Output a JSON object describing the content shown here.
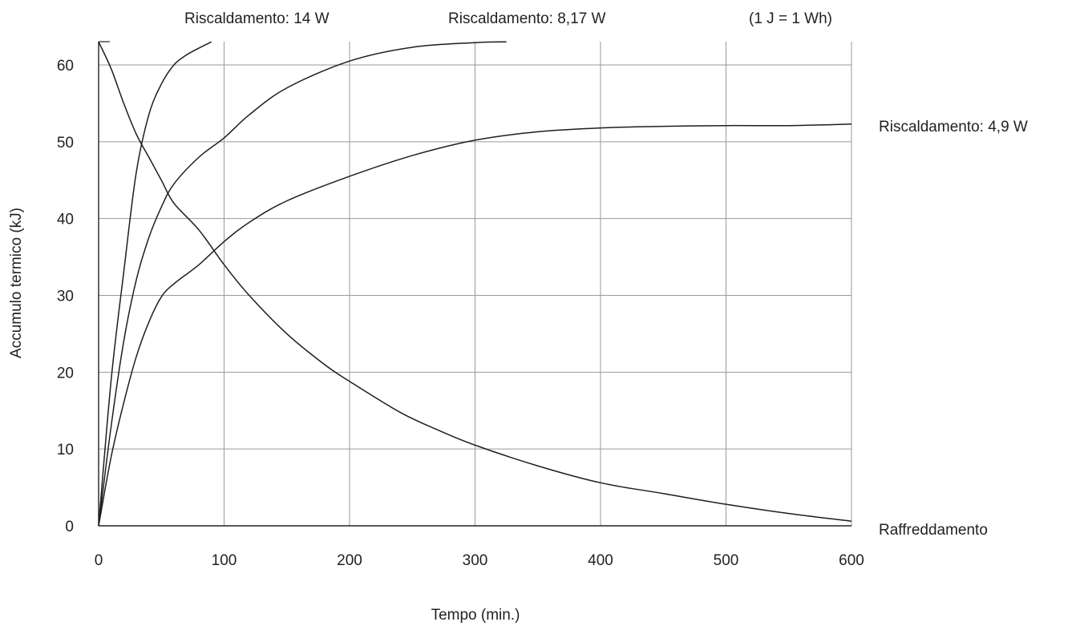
{
  "chart_data": {
    "type": "line",
    "title": "",
    "xlabel": "Tempo (min.)",
    "ylabel": "Accumulo termico (kJ)",
    "xlim": [
      0,
      600
    ],
    "ylim": [
      0,
      60
    ],
    "xticks": [
      0,
      100,
      200,
      300,
      400,
      500,
      600
    ],
    "yticks": [
      0,
      10,
      20,
      30,
      40,
      50,
      60
    ],
    "xtick_labels": [
      "0",
      "100",
      "200",
      "300",
      "400",
      "500",
      "600"
    ],
    "ytick_labels": [
      "0",
      "10",
      "20",
      "30",
      "40",
      "50",
      "60"
    ],
    "grid": true,
    "note": "(1 J = 1 Wh)",
    "series": [
      {
        "name": "Riscaldamento: 14 W",
        "points": [
          [
            0,
            0
          ],
          [
            10,
            19
          ],
          [
            20,
            33
          ],
          [
            30,
            46
          ],
          [
            40,
            53.5
          ],
          [
            50,
            57.5
          ],
          [
            60,
            60
          ],
          [
            70,
            61.3
          ],
          [
            80,
            62.2
          ],
          [
            90,
            63
          ]
        ]
      },
      {
        "name": "Riscaldamento: 8,17 W",
        "points": [
          [
            0,
            0
          ],
          [
            10,
            13
          ],
          [
            20,
            24
          ],
          [
            30,
            32
          ],
          [
            40,
            37.5
          ],
          [
            50,
            41.5
          ],
          [
            60,
            44.5
          ],
          [
            80,
            48
          ],
          [
            100,
            50.5
          ],
          [
            120,
            53.5
          ],
          [
            150,
            57
          ],
          [
            200,
            60.5
          ],
          [
            250,
            62.3
          ],
          [
            300,
            62.9
          ],
          [
            325,
            63
          ]
        ]
      },
      {
        "name": "Riscaldamento: 4,9 W",
        "points": [
          [
            0,
            0
          ],
          [
            10,
            9
          ],
          [
            20,
            16
          ],
          [
            30,
            22
          ],
          [
            40,
            26.5
          ],
          [
            50,
            29.8
          ],
          [
            60,
            31.5
          ],
          [
            80,
            34
          ],
          [
            100,
            37
          ],
          [
            120,
            39.5
          ],
          [
            150,
            42.3
          ],
          [
            200,
            45.5
          ],
          [
            250,
            48.2
          ],
          [
            300,
            50.2
          ],
          [
            350,
            51.3
          ],
          [
            400,
            51.8
          ],
          [
            450,
            52
          ],
          [
            500,
            52.1
          ],
          [
            550,
            52.1
          ],
          [
            600,
            52.3
          ]
        ]
      },
      {
        "name": "Raffreddamento",
        "points": [
          [
            0,
            63
          ],
          [
            10,
            59.5
          ],
          [
            20,
            55
          ],
          [
            30,
            51
          ],
          [
            40,
            48
          ],
          [
            50,
            45
          ],
          [
            60,
            42
          ],
          [
            80,
            38.5
          ],
          [
            100,
            34
          ],
          [
            120,
            30
          ],
          [
            150,
            25
          ],
          [
            180,
            21
          ],
          [
            200,
            18.8
          ],
          [
            240,
            14.8
          ],
          [
            270,
            12.5
          ],
          [
            300,
            10.5
          ],
          [
            350,
            7.8
          ],
          [
            400,
            5.6
          ],
          [
            450,
            4.2
          ],
          [
            500,
            2.8
          ],
          [
            550,
            1.6
          ],
          [
            600,
            0.6
          ]
        ]
      }
    ],
    "series_labels": {
      "heat_14w": "Riscaldamento: 14 W",
      "heat_817w": "Riscaldamento: 8,17 W",
      "heat_49w": "Riscaldamento: 4,9 W",
      "cooling": "Raffreddamento"
    }
  }
}
